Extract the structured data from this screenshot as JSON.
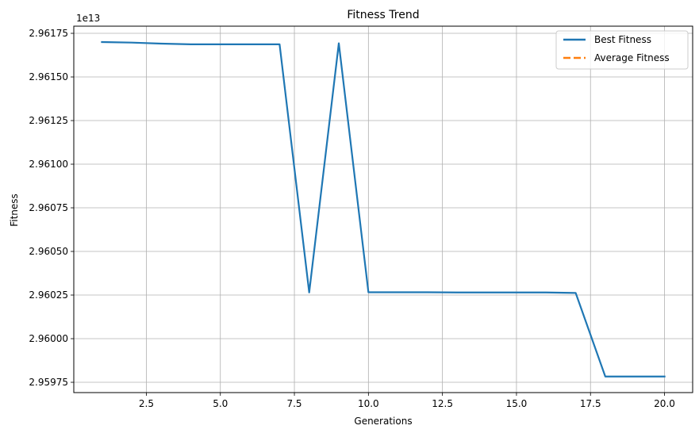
{
  "chart_data": {
    "type": "line",
    "title": "Fitness Trend",
    "xlabel": "Generations",
    "ylabel": "Fitness",
    "offset_label": "1e13",
    "xlim": [
      0.05,
      20.95
    ],
    "ylim": [
      2.959691,
      2.961791
    ],
    "x_ticks": [
      2.5,
      5.0,
      7.5,
      10.0,
      12.5,
      15.0,
      17.5,
      20.0
    ],
    "x_tick_labels": [
      "2.5",
      "5.0",
      "7.5",
      "10.0",
      "12.5",
      "15.0",
      "17.5",
      "20.0"
    ],
    "y_ticks": [
      2.95975,
      2.96,
      2.96025,
      2.9605,
      2.96075,
      2.961,
      2.96125,
      2.9615,
      2.96175
    ],
    "y_tick_labels": [
      "2.95975",
      "2.96000",
      "2.96025",
      "2.96050",
      "2.96075",
      "2.96100",
      "2.96125",
      "2.96150",
      "2.96175"
    ],
    "grid": true,
    "legend_position": "top-right",
    "series": [
      {
        "name": "Best Fitness",
        "color": "#1f77b4",
        "style": "solid",
        "x": [
          1,
          2,
          3,
          4,
          5,
          6,
          7,
          8,
          9,
          10,
          11,
          12,
          13,
          14,
          15,
          16,
          17,
          18,
          19,
          20
        ],
        "y": [
          2.9617,
          2.961697,
          2.961691,
          2.961687,
          2.961687,
          2.961687,
          2.961687,
          2.960265,
          2.961693,
          2.960266,
          2.960266,
          2.960266,
          2.960265,
          2.960265,
          2.960265,
          2.960265,
          2.960262,
          2.959783,
          2.959783,
          2.959783
        ]
      },
      {
        "name": "Average Fitness",
        "color": "#ff7f0e",
        "style": "dashed",
        "x": [],
        "y": []
      }
    ]
  }
}
